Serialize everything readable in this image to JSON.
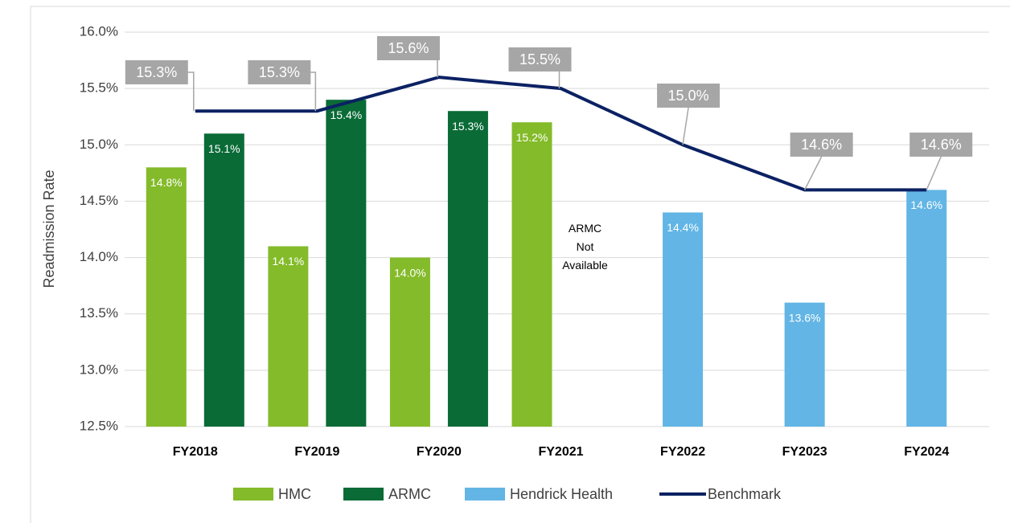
{
  "chart_data": {
    "type": "bar",
    "y_label": "Readmission Rate",
    "categories": [
      "FY2018",
      "FY2019",
      "FY2020",
      "FY2021",
      "FY2022",
      "FY2023",
      "FY2024"
    ],
    "series": [
      {
        "name": "HMC",
        "color": "#84bb2a",
        "values": [
          14.8,
          14.1,
          14.0,
          15.2,
          null,
          null,
          null
        ],
        "value_labels": [
          "14.8%",
          "14.1%",
          "14.0%",
          "15.2%",
          null,
          null,
          null
        ]
      },
      {
        "name": "ARMC",
        "color": "#0a6b37",
        "values": [
          15.1,
          15.4,
          15.3,
          null,
          null,
          null,
          null
        ],
        "value_labels": [
          "15.1%",
          "15.4%",
          "15.3%",
          null,
          null,
          null,
          null
        ]
      },
      {
        "name": "Hendrick Health",
        "color": "#62b5e5",
        "values": [
          null,
          null,
          null,
          null,
          14.4,
          13.6,
          14.6
        ],
        "value_labels": [
          null,
          null,
          null,
          null,
          "14.4%",
          "13.6%",
          "14.6%"
        ]
      },
      {
        "name": "Benchmark",
        "type": "line",
        "color": "#0b2163",
        "values": [
          15.3,
          15.3,
          15.6,
          15.5,
          15.0,
          14.6,
          14.6
        ],
        "value_labels": [
          "15.3%",
          "15.3%",
          "15.6%",
          "15.5%",
          "15.0%",
          "14.6%",
          "14.6%"
        ]
      }
    ],
    "annotations": [
      {
        "category": "FY2021",
        "text": "ARMC Not Available"
      }
    ],
    "ylim": [
      12.5,
      16.0
    ],
    "yticks": [
      {
        "value": 12.5,
        "label": "12.5%"
      },
      {
        "value": 13.0,
        "label": "13.0%"
      },
      {
        "value": 13.5,
        "label": "13.5%"
      },
      {
        "value": 14.0,
        "label": "14.0%"
      },
      {
        "value": 14.5,
        "label": "14.5%"
      },
      {
        "value": 15.0,
        "label": "15.0%"
      },
      {
        "value": 15.5,
        "label": "15.5%"
      },
      {
        "value": 16.0,
        "label": "16.0%"
      }
    ],
    "grid": true,
    "legend": "bottom"
  }
}
